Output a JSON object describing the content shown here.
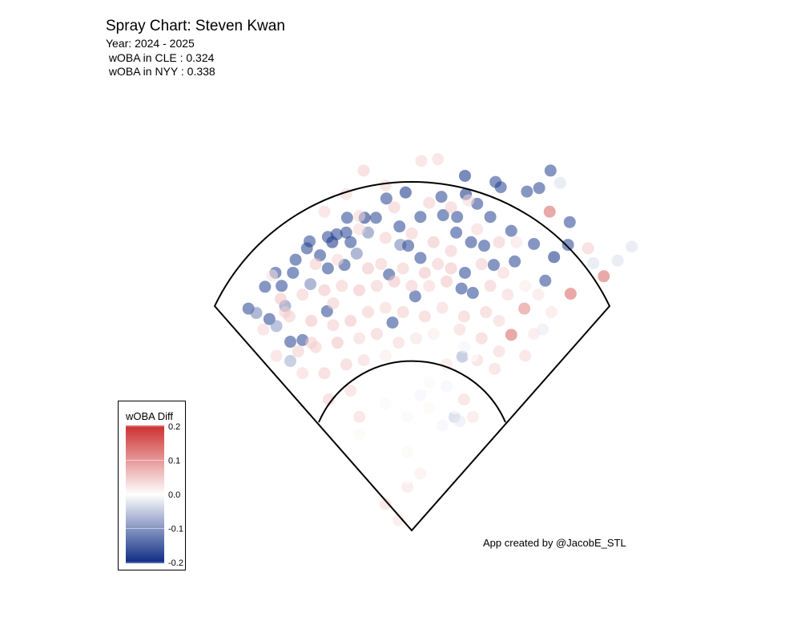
{
  "chart_data": {
    "type": "scatter",
    "title": "Spray Chart: Steven Kwan",
    "subtitle_lines": [
      "Year: 2024 - 2025",
      " wOBA in CLE : 0.324",
      " wOBA in NYY : 0.338"
    ],
    "caption": "App created by @JacobE_STL",
    "legend": {
      "title": "wOBA Diff",
      "placement": "bottom-left",
      "ticks": [
        "0.2",
        "0.1",
        "0.0",
        "-0.1",
        "-0.2"
      ],
      "range": [
        -0.2,
        0.2
      ],
      "colors": {
        "low": "#0b2a83",
        "mid": "#ffffff",
        "high": "#cc2f2f"
      }
    },
    "point_fields": [
      "x_ft",
      "y_ft",
      "woba_diff"
    ],
    "points": [
      [
        61,
        406,
        -0.2
      ],
      [
        96,
        399,
        -0.18
      ],
      [
        102,
        393,
        -0.18
      ],
      [
        159,
        412,
        -0.18
      ],
      [
        132,
        388,
        -0.18
      ],
      [
        146,
        392,
        -0.18
      ],
      [
        -7,
        387,
        -0.2
      ],
      [
        -29,
        380,
        -0.18
      ],
      [
        34,
        382,
        -0.18
      ],
      [
        62,
        385,
        -0.2
      ],
      [
        75,
        374,
        -0.18
      ],
      [
        90,
        359,
        -0.18
      ],
      [
        114,
        343,
        -0.18
      ],
      [
        140,
        328,
        -0.18
      ],
      [
        181,
        353,
        -0.18
      ],
      [
        179,
        327,
        -0.18
      ],
      [
        163,
        313,
        -0.2
      ],
      [
        153,
        286,
        -0.18
      ],
      [
        118,
        308,
        -0.18
      ],
      [
        94,
        304,
        -0.18
      ],
      [
        83,
        326,
        -0.18
      ],
      [
        68,
        330,
        -0.18
      ],
      [
        51,
        341,
        -0.18
      ],
      [
        52,
        359,
        -0.18
      ],
      [
        36,
        361,
        -0.18
      ],
      [
        10,
        359,
        -0.18
      ],
      [
        -14,
        348,
        -0.18
      ],
      [
        -41,
        358,
        -0.18
      ],
      [
        -54,
        358,
        -0.2
      ],
      [
        -74,
        358,
        -0.18
      ],
      [
        -50,
        341,
        -0.12
      ],
      [
        -70,
        330,
        -0.18
      ],
      [
        -91,
        330,
        -0.2
      ],
      [
        -96,
        336,
        -0.18
      ],
      [
        -117,
        331,
        -0.18
      ],
      [
        -120,
        323,
        -0.18
      ],
      [
        -133,
        310,
        -0.18
      ],
      [
        -136,
        295,
        -0.18
      ],
      [
        -156,
        295,
        -0.18
      ],
      [
        -168,
        279,
        -0.18
      ],
      [
        -149,
        280,
        -0.18
      ],
      [
        -145,
        257,
        -0.12
      ],
      [
        -187,
        254,
        -0.18
      ],
      [
        -178,
        249,
        -0.12
      ],
      [
        -163,
        242,
        -0.18
      ],
      [
        -139,
        216,
        -0.18
      ],
      [
        -125,
        218,
        -0.18
      ],
      [
        -116,
        282,
        -0.12
      ],
      [
        -96,
        300,
        -0.18
      ],
      [
        -77,
        304,
        -0.18
      ],
      [
        -63,
        317,
        -0.12
      ],
      [
        -26,
        293,
        -0.18
      ],
      [
        -13,
        327,
        -0.12
      ],
      [
        -4,
        326,
        -0.18
      ],
      [
        10,
        312,
        -0.18
      ],
      [
        61,
        295,
        -0.18
      ],
      [
        70,
        272,
        -0.18
      ],
      [
        57,
        277,
        -0.18
      ],
      [
        4,
        268,
        -0.18
      ],
      [
        -22,
        238,
        -0.18
      ],
      [
        -97,
        251,
        -0.18
      ],
      [
        58,
        199,
        -0.08
      ],
      [
        49,
        130,
        -0.05
      ],
      [
        -75,
        341,
        -0.18
      ],
      [
        -86,
        339,
        -0.18
      ],
      [
        -105,
        315,
        -0.18
      ],
      [
        -155,
        234,
        -0.1
      ],
      [
        -139,
        194,
        -0.08
      ],
      [
        158,
        365,
        0.15
      ],
      [
        220,
        291,
        0.15
      ],
      [
        182,
        271,
        0.15
      ],
      [
        129,
        254,
        0.12
      ],
      [
        114,
        224,
        0.15
      ],
      [
        170,
        398,
        -0.03
      ],
      [
        252,
        325,
        -0.03
      ],
      [
        208,
        306,
        -0.03
      ],
      [
        236,
        309,
        -0.03
      ],
      [
        202,
        323,
        0.05
      ],
      [
        -55,
        412,
        0.05
      ],
      [
        11,
        423,
        0.04
      ],
      [
        30,
        425,
        0.04
      ],
      [
        -100,
        365,
        0.04
      ],
      [
        -20,
        370,
        0.05
      ],
      [
        20,
        375,
        0.05
      ],
      [
        45,
        370,
        0.05
      ],
      [
        -60,
        345,
        0.04
      ],
      [
        -30,
        335,
        0.05
      ],
      [
        0,
        340,
        0.05
      ],
      [
        25,
        330,
        0.06
      ],
      [
        45,
        320,
        0.05
      ],
      [
        75,
        345,
        0.04
      ],
      [
        100,
        330,
        0.05
      ],
      [
        120,
        330,
        0.03
      ],
      [
        -110,
        305,
        0.05
      ],
      [
        -85,
        310,
        0.04
      ],
      [
        -50,
        300,
        0.06
      ],
      [
        -35,
        305,
        0.05
      ],
      [
        -10,
        300,
        0.05
      ],
      [
        15,
        295,
        0.06
      ],
      [
        30,
        305,
        0.05
      ],
      [
        45,
        300,
        0.06
      ],
      [
        80,
        305,
        0.05
      ],
      [
        105,
        295,
        0.04
      ],
      [
        130,
        280,
        0.02
      ],
      [
        145,
        270,
        0.03
      ],
      [
        -150,
        265,
        0.06
      ],
      [
        -125,
        270,
        0.05
      ],
      [
        -100,
        275,
        0.06
      ],
      [
        -80,
        280,
        0.05
      ],
      [
        -60,
        275,
        0.06
      ],
      [
        -40,
        280,
        0.05
      ],
      [
        -20,
        285,
        0.06
      ],
      [
        0,
        280,
        0.05
      ],
      [
        20,
        280,
        0.04
      ],
      [
        40,
        285,
        0.06
      ],
      [
        90,
        280,
        0.05
      ],
      [
        110,
        270,
        0.04
      ],
      [
        -170,
        230,
        0.04
      ],
      [
        -140,
        245,
        0.05
      ],
      [
        -115,
        240,
        0.06
      ],
      [
        -90,
        235,
        0.05
      ],
      [
        -70,
        240,
        0.06
      ],
      [
        -50,
        250,
        0.05
      ],
      [
        -30,
        255,
        0.04
      ],
      [
        -10,
        250,
        0.05
      ],
      [
        15,
        245,
        0.05
      ],
      [
        35,
        255,
        0.04
      ],
      [
        60,
        245,
        0.05
      ],
      [
        85,
        250,
        0.05
      ],
      [
        100,
        240,
        0.04
      ],
      [
        140,
        225,
        0.03
      ],
      [
        160,
        250,
        0.03
      ],
      [
        -155,
        200,
        0.04
      ],
      [
        -130,
        205,
        0.05
      ],
      [
        -110,
        210,
        0.05
      ],
      [
        -85,
        215,
        0.06
      ],
      [
        -60,
        220,
        0.04
      ],
      [
        -40,
        225,
        0.05
      ],
      [
        -15,
        215,
        0.04
      ],
      [
        5,
        220,
        0.03
      ],
      [
        25,
        225,
        0.02
      ],
      [
        55,
        230,
        0.04
      ],
      [
        80,
        220,
        0.05
      ],
      [
        100,
        205,
        0.04
      ],
      [
        130,
        200,
        0.04
      ],
      [
        -125,
        180,
        0.04
      ],
      [
        -100,
        180,
        0.05
      ],
      [
        -75,
        190,
        0.05
      ],
      [
        -55,
        195,
        0.04
      ],
      [
        40,
        190,
        0.03
      ],
      [
        75,
        195,
        0.04
      ],
      [
        95,
        185,
        0.04
      ],
      [
        -145,
        250,
        0.05
      ],
      [
        -90,
        260,
        0.05
      ],
      [
        -115,
        215,
        0.05
      ],
      [
        -30,
        200,
        0.02
      ],
      [
        -60,
        360,
        0.04
      ],
      [
        -30,
        395,
        0.04
      ],
      [
        -160,
        292,
        0.03
      ],
      [
        65,
        378,
        0.04
      ],
      [
        -75,
        385,
        0.04
      ],
      [
        -95,
        150,
        0.05
      ],
      [
        -70,
        160,
        0.04
      ],
      [
        -60,
        130,
        0.04
      ],
      [
        60,
        150,
        0.04
      ],
      [
        70,
        130,
        0.03
      ],
      [
        -30,
        30,
        0.04
      ],
      [
        -15,
        12,
        0.03
      ],
      [
        -5,
        50,
        0.03
      ],
      [
        10,
        65,
        0.02
      ],
      [
        -40,
        170,
        0
      ],
      [
        -20,
        180,
        0
      ],
      [
        0,
        175,
        0
      ],
      [
        20,
        170,
        0.01
      ],
      [
        40,
        165,
        -0.01
      ],
      [
        -50,
        150,
        0
      ],
      [
        -30,
        145,
        0.01
      ],
      [
        -10,
        150,
        0
      ],
      [
        10,
        155,
        -0.01
      ],
      [
        30,
        150,
        0
      ],
      [
        50,
        140,
        0
      ],
      [
        -45,
        125,
        0
      ],
      [
        -25,
        120,
        0
      ],
      [
        -5,
        130,
        0.01
      ],
      [
        15,
        125,
        0
      ],
      [
        35,
        120,
        -0.01
      ],
      [
        -35,
        100,
        0
      ],
      [
        -15,
        95,
        0
      ],
      [
        5,
        105,
        0
      ],
      [
        25,
        100,
        0
      ],
      [
        -20,
        75,
        0
      ],
      [
        0,
        80,
        0
      ],
      [
        -5,
        60,
        0
      ],
      [
        60,
        210,
        -0.01
      ],
      [
        45,
        210,
        0
      ],
      [
        70,
        200,
        0
      ],
      [
        150,
        230,
        -0.02
      ],
      [
        165,
        205,
        0
      ],
      [
        -5,
        90,
        0.01
      ],
      [
        20,
        140,
        0.01
      ],
      [
        -60,
        110,
        0.01
      ],
      [
        55,
        125,
        -0.02
      ]
    ]
  }
}
